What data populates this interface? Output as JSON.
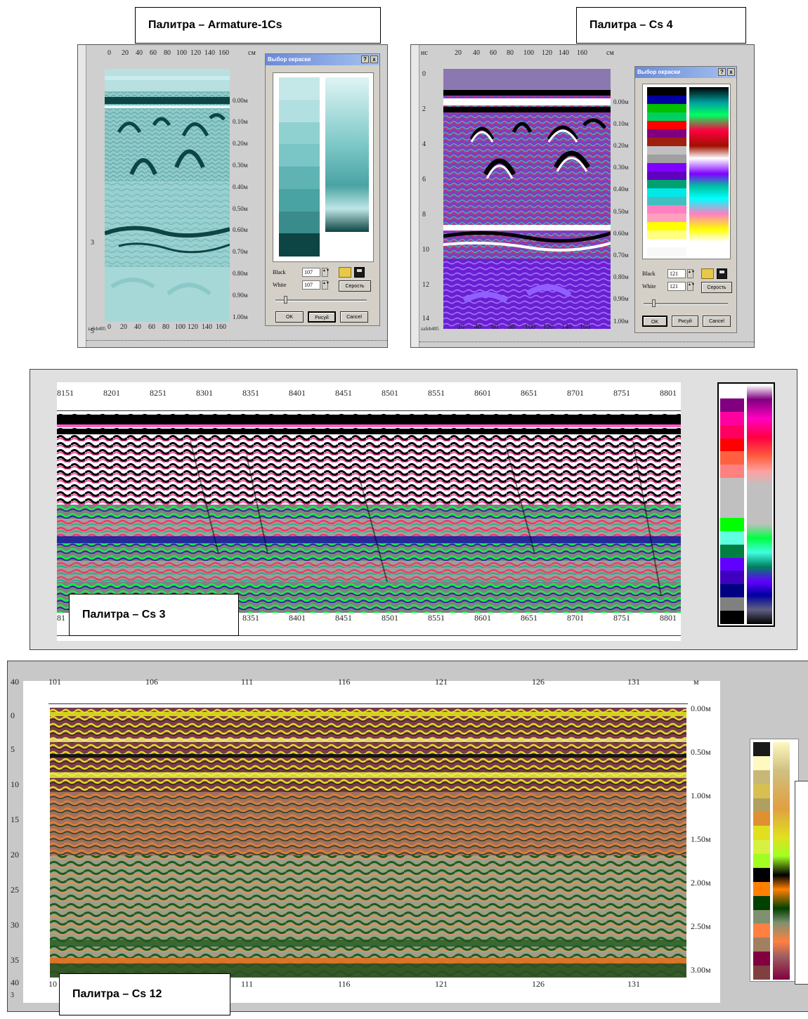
{
  "captions": {
    "armature": "Палитра – Armature-1Cs",
    "cs4": "Палитра – Cs 4",
    "cs3": "Палитра – Cs 3",
    "cs12": "Палитра – Cs 12"
  },
  "panel_armature": {
    "top_axis": [
      "0",
      "20",
      "40",
      "60",
      "80",
      "100",
      "120",
      "140",
      "160",
      "cм"
    ],
    "bottom_axis": [
      "0",
      "20",
      "40",
      "60",
      "80",
      "100",
      "120",
      "140",
      "160"
    ],
    "depth_axis": [
      "0.00м",
      "0.10м",
      "0.20м",
      "0.30м",
      "0.40м",
      "0.50м",
      "0.60м",
      "0.70м",
      "0.80м",
      "0.90м",
      "1.00м"
    ],
    "left_marks": [
      "3",
      "5"
    ],
    "file_label": "zafeb405",
    "dialog": {
      "title": "Выбор окраски",
      "help_btn": "?",
      "close_btn": "x",
      "black_label": "Black",
      "white_label": "White",
      "black_value": "107",
      "white_value": "107",
      "gray_btn": "Серость",
      "ok_btn": "OK",
      "draw_btn": "Рисуй",
      "cancel_btn": "Cancel"
    },
    "palette_colors": [
      "#c4e8e8",
      "#b2e0e0",
      "#8fd0d0",
      "#7ac6c6",
      "#5fb3b3",
      "#4aa3a3",
      "#3a8c8c",
      "#0d4444"
    ]
  },
  "panel_cs4": {
    "top_axis": [
      "20",
      "40",
      "60",
      "80",
      "100",
      "120",
      "140",
      "160",
      "см"
    ],
    "bottom_axis": [
      "20",
      "40",
      "60",
      "80",
      "100",
      "120",
      "140",
      "160"
    ],
    "depth_axis": [
      "0.00м",
      "0.10м",
      "0.20м",
      "0.30м",
      "0.40м",
      "0.50м",
      "0.60м",
      "0.70м",
      "0.80м",
      "0.90м",
      "1.00м"
    ],
    "left_axis": [
      "0",
      "2",
      "4",
      "6",
      "8",
      "10",
      "12",
      "14"
    ],
    "left_unit": "нс",
    "file_label": "zafeb405",
    "dialog": {
      "title": "Выбор окраски",
      "help_btn": "?",
      "close_btn": "x",
      "black_label": "Black",
      "white_label": "White",
      "black_value": "121",
      "white_value": "121",
      "gray_btn": "Серость",
      "ok_btn": "OK",
      "draw_btn": "Рисуй",
      "cancel_btn": "Cancel"
    },
    "palette_colors": [
      "#000000",
      "#0000a0",
      "#00c000",
      "#00d060",
      "#ff0000",
      "#800080",
      "#a02010",
      "#c0c0c0",
      "#a0a0a0",
      "#8000ff",
      "#6000c0",
      "#00a070",
      "#00e8e8",
      "#40c0c0",
      "#ff80c0",
      "#ffa0c0",
      "#ffff00",
      "#ffff80",
      "#ffffff",
      "#f8f8f8"
    ]
  },
  "panel_cs3": {
    "top_axis": [
      "8151",
      "8201",
      "8251",
      "8301",
      "8351",
      "8401",
      "8451",
      "8501",
      "8551",
      "8601",
      "8651",
      "8701",
      "8751",
      "8801"
    ],
    "bottom_axis": [
      "81",
      "8351",
      "8401",
      "8451",
      "8501",
      "8551",
      "8601",
      "8651",
      "8701",
      "8751",
      "8801"
    ],
    "palette_colors": [
      "#ffffff",
      "#800080",
      "#ff00a0",
      "#ff0060",
      "#ff0000",
      "#ff6040",
      "#ff8080",
      "#c0c0c0",
      "#c0c0c0",
      "#c0c0c0",
      "#00ff00",
      "#60ffe0",
      "#008040",
      "#6000ff",
      "#4000c0",
      "#000080",
      "#808080",
      "#000000"
    ]
  },
  "panel_cs12": {
    "top_axis": [
      "101",
      "106",
      "111",
      "116",
      "121",
      "126",
      "131",
      "м"
    ],
    "bottom_axis": [
      "10",
      "111",
      "116",
      "121",
      "126",
      "131"
    ],
    "depth_axis": [
      "0.00м",
      "0.50м",
      "1.00м",
      "1.50м",
      "2.00м",
      "2.50м",
      "3.00м"
    ],
    "left_axis": [
      "0",
      "5",
      "10",
      "15",
      "20",
      "25",
      "30",
      "35",
      "40"
    ],
    "left_top": "40",
    "left_bottom": "3",
    "palette_colors": [
      "#1a1a1a",
      "#fff8c0",
      "#c8b878",
      "#d8c050",
      "#b0a060",
      "#e09030",
      "#e0e020",
      "#d8f040",
      "#a0ff20",
      "#000000",
      "#ff8000",
      "#004000",
      "#809070",
      "#ff8040",
      "#a08060",
      "#800040",
      "#804040"
    ]
  }
}
